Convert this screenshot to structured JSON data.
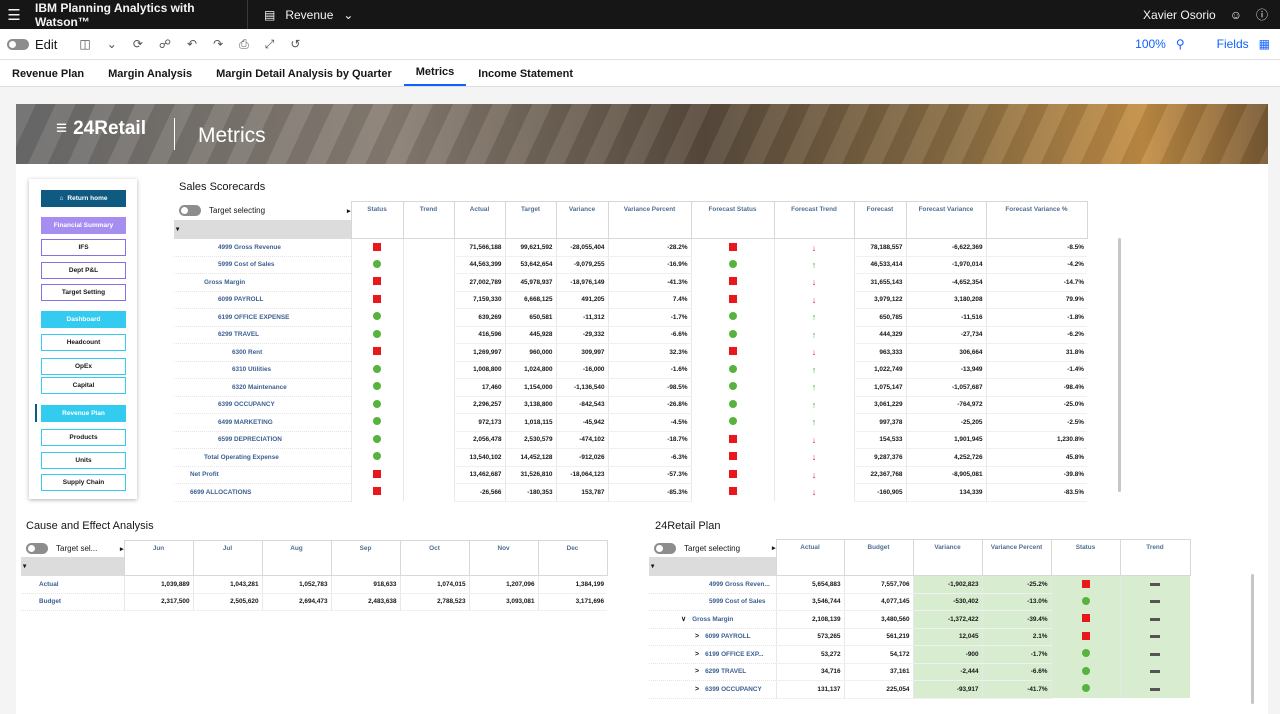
{
  "app": {
    "name": "IBM Planning Analytics with Watson™",
    "view_name": "Revenue",
    "user_name": "Xavier Osorio"
  },
  "toolbar": {
    "edit_label": "Edit",
    "zoom": "100%",
    "fields_label": "Fields"
  },
  "tabs": [
    {
      "label": "Revenue Plan"
    },
    {
      "label": "Margin Analysis"
    },
    {
      "label": "Margin Detail Analysis by Quarter"
    },
    {
      "label": "Metrics"
    },
    {
      "label": "Income Statement"
    }
  ],
  "banner": {
    "logo": "24Retail",
    "title": "Metrics"
  },
  "nav": [
    {
      "label": "Return home"
    },
    {
      "label": "Financial Summary"
    },
    {
      "label": "IFS"
    },
    {
      "label": "Dept P&L"
    },
    {
      "label": "Target Setting"
    },
    {
      "label": "Dashboard"
    },
    {
      "label": "Headcount"
    },
    {
      "label": "OpEx"
    },
    {
      "label": "Capital"
    },
    {
      "label": "Revenue Plan"
    },
    {
      "label": "Products"
    },
    {
      "label": "Units"
    },
    {
      "label": "Supply Chain"
    }
  ],
  "scorecard": {
    "title": "Sales Scorecards",
    "target_label": "Target selecting",
    "columns": [
      "Status",
      "Trend",
      "Actual",
      "Target",
      "Variance",
      "Variance Percent",
      "Forecast Status",
      "Forecast Trend",
      "Forecast",
      "Forecast Variance",
      "Forecast Variance %"
    ],
    "rows": [
      {
        "label": "4999 Gross Revenue",
        "status": "red",
        "actual": "71,566,188",
        "target": "99,621,592",
        "variance": "-28,055,404",
        "var_pct": "-28.2%",
        "fstatus": "red",
        "ftrend": "down",
        "forecast": "78,188,557",
        "fvar": "-6,622,369",
        "fvar_pct": "-8.5%"
      },
      {
        "label": "5999 Cost of Sales",
        "status": "green",
        "actual": "44,563,399",
        "target": "53,642,654",
        "variance": "-9,079,255",
        "var_pct": "-16.9%",
        "fstatus": "green",
        "ftrend": "up",
        "forecast": "46,533,414",
        "fvar": "-1,970,014",
        "fvar_pct": "-4.2%"
      },
      {
        "label": "Gross Margin",
        "status": "red",
        "actual": "27,002,789",
        "target": "45,978,937",
        "variance": "-18,976,149",
        "var_pct": "-41.3%",
        "fstatus": "red",
        "ftrend": "down",
        "forecast": "31,655,143",
        "fvar": "-4,652,354",
        "fvar_pct": "-14.7%"
      },
      {
        "label": "6099 PAYROLL",
        "status": "red",
        "actual": "7,159,330",
        "target": "6,668,125",
        "variance": "491,205",
        "var_pct": "7.4%",
        "fstatus": "red",
        "ftrend": "down",
        "forecast": "3,979,122",
        "fvar": "3,180,208",
        "fvar_pct": "79.9%"
      },
      {
        "label": "6199 OFFICE EXPENSE",
        "status": "green",
        "actual": "639,269",
        "target": "650,581",
        "variance": "-11,312",
        "var_pct": "-1.7%",
        "fstatus": "green",
        "ftrend": "up",
        "forecast": "650,785",
        "fvar": "-11,516",
        "fvar_pct": "-1.8%"
      },
      {
        "label": "6299 TRAVEL",
        "status": "green",
        "actual": "416,596",
        "target": "445,928",
        "variance": "-29,332",
        "var_pct": "-6.6%",
        "fstatus": "green",
        "ftrend": "up",
        "forecast": "444,329",
        "fvar": "-27,734",
        "fvar_pct": "-6.2%"
      },
      {
        "label": "6300 Rent",
        "status": "red",
        "actual": "1,269,997",
        "target": "960,000",
        "variance": "309,997",
        "var_pct": "32.3%",
        "fstatus": "red",
        "ftrend": "down",
        "forecast": "963,333",
        "fvar": "306,664",
        "fvar_pct": "31.8%"
      },
      {
        "label": "6310 Utilities",
        "status": "green",
        "actual": "1,008,800",
        "target": "1,024,800",
        "variance": "-16,000",
        "var_pct": "-1.6%",
        "fstatus": "green",
        "ftrend": "up",
        "forecast": "1,022,749",
        "fvar": "-13,949",
        "fvar_pct": "-1.4%"
      },
      {
        "label": "6320 Maintenance",
        "status": "green",
        "actual": "17,460",
        "target": "1,154,000",
        "variance": "-1,136,540",
        "var_pct": "-98.5%",
        "fstatus": "green",
        "ftrend": "up",
        "forecast": "1,075,147",
        "fvar": "-1,057,687",
        "fvar_pct": "-98.4%"
      },
      {
        "label": "6399 OCCUPANCY",
        "status": "green",
        "actual": "2,296,257",
        "target": "3,138,800",
        "variance": "-842,543",
        "var_pct": "-26.8%",
        "fstatus": "green",
        "ftrend": "up",
        "forecast": "3,061,229",
        "fvar": "-764,972",
        "fvar_pct": "-25.0%"
      },
      {
        "label": "6499 MARKETING",
        "status": "green",
        "actual": "972,173",
        "target": "1,018,115",
        "variance": "-45,942",
        "var_pct": "-4.5%",
        "fstatus": "green",
        "ftrend": "up",
        "forecast": "997,378",
        "fvar": "-25,205",
        "fvar_pct": "-2.5%"
      },
      {
        "label": "6599 DEPRECIATION",
        "status": "green",
        "actual": "2,056,478",
        "target": "2,530,579",
        "variance": "-474,102",
        "var_pct": "-18.7%",
        "fstatus": "red",
        "ftrend": "down",
        "forecast": "154,533",
        "fvar": "1,901,945",
        "fvar_pct": "1,230.8%"
      },
      {
        "label": "Total Operating Expense",
        "status": "green",
        "actual": "13,540,102",
        "target": "14,452,128",
        "variance": "-912,026",
        "var_pct": "-6.3%",
        "fstatus": "red",
        "ftrend": "down",
        "forecast": "9,287,376",
        "fvar": "4,252,726",
        "fvar_pct": "45.8%"
      },
      {
        "label": "Net Profit",
        "status": "red",
        "actual": "13,462,687",
        "target": "31,526,810",
        "variance": "-18,064,123",
        "var_pct": "-57.3%",
        "fstatus": "red",
        "ftrend": "down",
        "forecast": "22,367,768",
        "fvar": "-8,905,081",
        "fvar_pct": "-39.8%"
      },
      {
        "label": "6699 ALLOCATIONS",
        "status": "red",
        "actual": "-26,566",
        "target": "-180,353",
        "variance": "153,787",
        "var_pct": "-85.3%",
        "fstatus": "red",
        "ftrend": "down",
        "forecast": "-160,905",
        "fvar": "134,339",
        "fvar_pct": "-83.5%"
      }
    ]
  },
  "cause": {
    "title": "Cause and Effect Analysis",
    "target_label": "Target sel...",
    "columns": [
      "Jun",
      "Jul",
      "Aug",
      "Sep",
      "Oct",
      "Nov",
      "Dec"
    ],
    "rows": [
      {
        "label": "Actual",
        "values": [
          "1,039,889",
          "1,043,281",
          "1,052,783",
          "918,633",
          "1,074,015",
          "1,207,096",
          "1,384,199"
        ]
      },
      {
        "label": "Budget",
        "values": [
          "2,317,500",
          "2,505,620",
          "2,694,473",
          "2,483,638",
          "2,788,523",
          "3,093,081",
          "3,171,696"
        ]
      }
    ]
  },
  "plan": {
    "title": "24Retail Plan",
    "target_label": "Target selecting",
    "columns": [
      "Actual",
      "Budget",
      "Variance",
      "Variance Percent",
      "Status",
      "Trend"
    ],
    "rows": [
      {
        "label": "4999 Gross Reven...",
        "expander": "",
        "actual": "5,654,883",
        "budget": "7,557,706",
        "variance": "-1,902,823",
        "var_pct": "-25.2%",
        "status": "red"
      },
      {
        "label": "5999 Cost of Sales",
        "expander": "",
        "actual": "3,546,744",
        "budget": "4,077,145",
        "variance": "-530,402",
        "var_pct": "-13.0%",
        "status": "green"
      },
      {
        "label": "Gross Margin",
        "expander": "∨",
        "actual": "2,108,139",
        "budget": "3,480,560",
        "variance": "-1,372,422",
        "var_pct": "-39.4%",
        "status": "red"
      },
      {
        "label": "6099 PAYROLL",
        "expander": ">",
        "actual": "573,265",
        "budget": "561,219",
        "variance": "12,045",
        "var_pct": "2.1%",
        "status": "red"
      },
      {
        "label": "6199 OFFICE EXP...",
        "expander": ">",
        "actual": "53,272",
        "budget": "54,172",
        "variance": "-900",
        "var_pct": "-1.7%",
        "status": "green"
      },
      {
        "label": "6299 TRAVEL",
        "expander": ">",
        "actual": "34,716",
        "budget": "37,161",
        "variance": "-2,444",
        "var_pct": "-6.6%",
        "status": "green"
      },
      {
        "label": "6399 OCCUPANCY",
        "expander": ">",
        "actual": "131,137",
        "budget": "225,054",
        "variance": "-93,917",
        "var_pct": "-41.7%",
        "status": "green"
      }
    ]
  }
}
